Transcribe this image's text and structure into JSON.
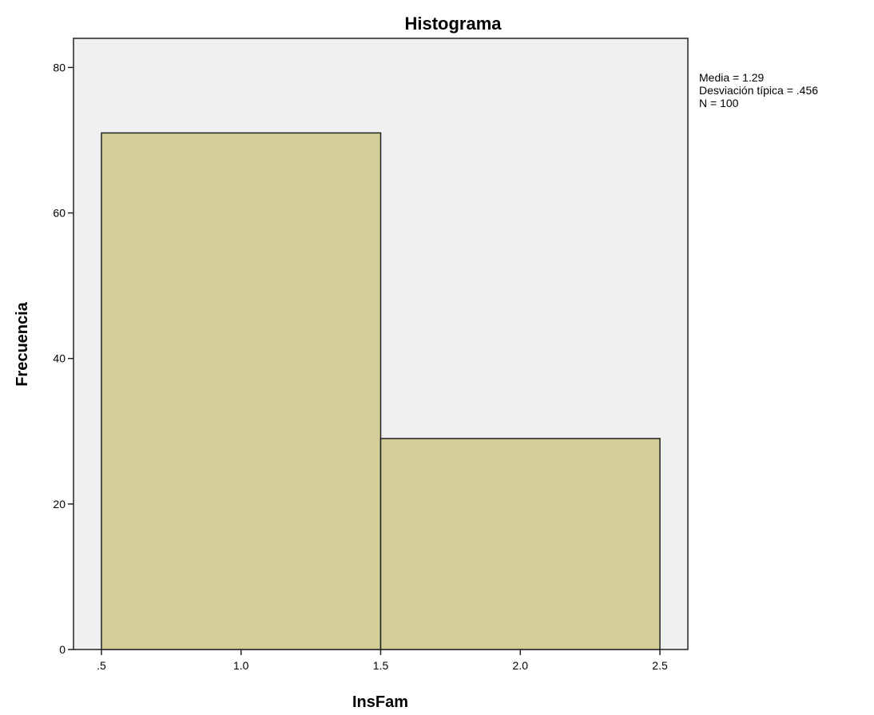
{
  "chart_data": {
    "type": "bar",
    "title": "Histograma",
    "xlabel": "InsFam",
    "ylabel": "Frecuencia",
    "bins": [
      {
        "start": 0.5,
        "end": 1.5,
        "value": 71
      },
      {
        "start": 1.5,
        "end": 2.5,
        "value": 29
      }
    ],
    "xlim": [
      0.4,
      2.6
    ],
    "ylim": [
      0,
      84
    ],
    "x_ticks": [
      {
        "value": 0.5,
        "label": ".5"
      },
      {
        "value": 1.0,
        "label": "1.0"
      },
      {
        "value": 1.5,
        "label": "1.5"
      },
      {
        "value": 2.0,
        "label": "2.0"
      },
      {
        "value": 2.5,
        "label": "2.5"
      }
    ],
    "y_ticks": [
      {
        "value": 0,
        "label": "0"
      },
      {
        "value": 20,
        "label": "20"
      },
      {
        "value": 40,
        "label": "40"
      },
      {
        "value": 60,
        "label": "60"
      },
      {
        "value": 80,
        "label": "80"
      }
    ],
    "grid": false,
    "legend": "none",
    "stats": [
      "Media = 1.29",
      "Desviación típica = .456",
      "N = 100"
    ],
    "colors": {
      "bar_fill": "#d3ce97",
      "bar_stroke": "#222222",
      "plot_background": "#f0f0f0",
      "frame": "#222222"
    }
  }
}
